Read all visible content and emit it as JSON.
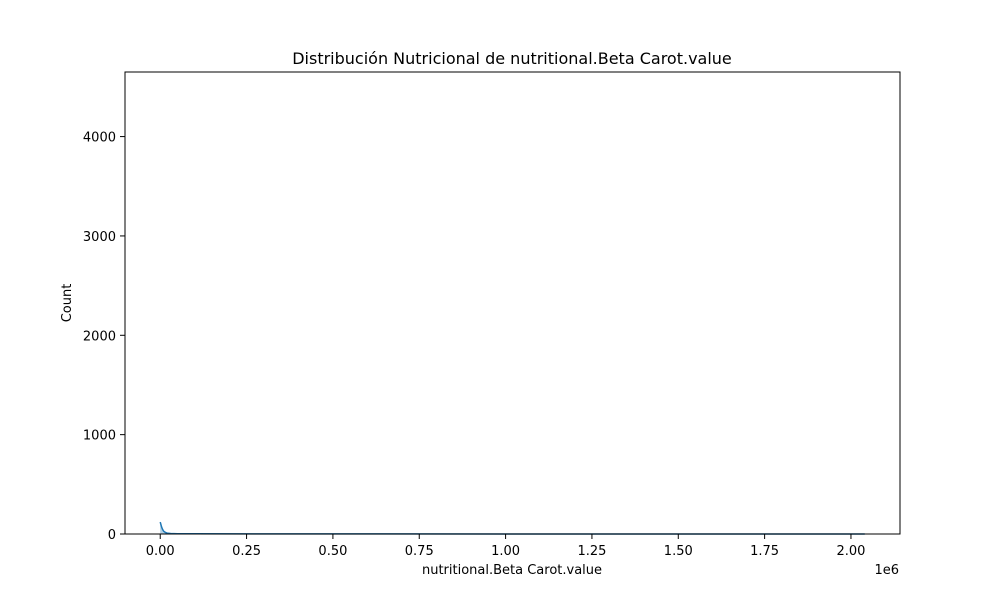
{
  "chart_data": {
    "type": "area",
    "title": "Distribución Nutricional de nutritional.Beta Carot.value",
    "xlabel": "nutritional.Beta Carot.value",
    "ylabel": "Count",
    "x_offset_label": "1e6",
    "xlim": [
      -0.102,
      2.142
    ],
    "ylim": [
      0,
      4650
    ],
    "xticks": [
      0.0,
      0.25,
      0.5,
      0.75,
      1.0,
      1.25,
      1.5,
      1.75,
      2.0
    ],
    "xtick_labels": [
      "0.00",
      "0.25",
      "0.50",
      "0.75",
      "1.00",
      "1.25",
      "1.50",
      "1.75",
      "2.00"
    ],
    "yticks": [
      0,
      1000,
      2000,
      3000,
      4000
    ],
    "ytick_labels": [
      "0",
      "1000",
      "2000",
      "3000",
      "4000"
    ],
    "grid": false,
    "series": [
      {
        "color": "#1f77b4",
        "x": [
          0.0,
          0.002,
          0.004,
          0.007,
          0.01,
          0.015,
          0.02,
          0.03,
          0.05,
          0.1,
          0.3,
          0.6,
          1.0,
          1.5,
          2.04
        ],
        "y": [
          120,
          95,
          70,
          45,
          28,
          16,
          9,
          5,
          3,
          2,
          1,
          1,
          0.5,
          0.3,
          0.2
        ]
      }
    ]
  }
}
